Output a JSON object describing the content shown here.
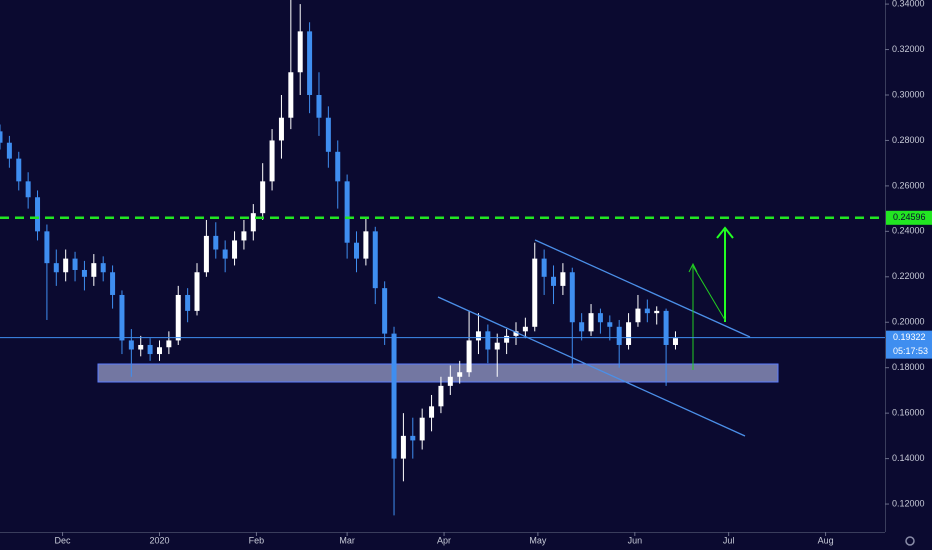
{
  "chart_data": {
    "type": "candlestick",
    "x": [
      -20,
      -17,
      -14,
      -11,
      -8,
      -5,
      -2,
      1,
      4,
      7,
      10,
      13,
      16,
      19,
      22,
      25,
      28,
      31,
      34,
      37,
      40,
      43,
      46,
      49,
      52,
      55,
      58,
      61,
      64,
      67,
      70,
      73,
      76,
      79,
      82,
      85,
      88,
      91,
      94,
      97,
      100,
      103,
      106,
      109,
      112,
      115,
      118,
      121,
      124,
      127,
      130,
      133,
      136,
      139,
      142,
      145,
      148,
      151,
      154,
      157,
      160,
      163,
      166,
      169,
      172,
      175,
      178,
      181,
      184,
      187,
      190,
      193,
      196
    ],
    "open": [
      0.284,
      0.279,
      0.272,
      0.262,
      0.255,
      0.24,
      0.226,
      0.222,
      0.228,
      0.223,
      0.22,
      0.226,
      0.222,
      0.212,
      0.192,
      0.188,
      0.19,
      0.186,
      0.189,
      0.192,
      0.212,
      0.205,
      0.222,
      0.238,
      0.232,
      0.228,
      0.236,
      0.24,
      0.248,
      0.262,
      0.28,
      0.29,
      0.31,
      0.328,
      0.3,
      0.29,
      0.275,
      0.262,
      0.235,
      0.228,
      0.24,
      0.215,
      0.195,
      0.14,
      0.15,
      0.148,
      0.158,
      0.163,
      0.172,
      0.176,
      0.178,
      0.192,
      0.196,
      0.188,
      0.191,
      0.194,
      0.196,
      0.198,
      0.228,
      0.22,
      0.216,
      0.222,
      0.2,
      0.196,
      0.204,
      0.2,
      0.198,
      0.19,
      0.2,
      0.206,
      0.204,
      0.205,
      0.19
    ],
    "high": [
      0.287,
      0.282,
      0.275,
      0.266,
      0.258,
      0.243,
      0.232,
      0.232,
      0.231,
      0.227,
      0.23,
      0.229,
      0.225,
      0.214,
      0.197,
      0.194,
      0.193,
      0.192,
      0.196,
      0.216,
      0.215,
      0.226,
      0.245,
      0.244,
      0.236,
      0.24,
      0.245,
      0.252,
      0.27,
      0.285,
      0.3,
      0.342,
      0.34,
      0.332,
      0.31,
      0.295,
      0.28,
      0.265,
      0.24,
      0.246,
      0.242,
      0.218,
      0.198,
      0.16,
      0.158,
      0.162,
      0.168,
      0.176,
      0.181,
      0.183,
      0.205,
      0.204,
      0.199,
      0.195,
      0.197,
      0.2,
      0.202,
      0.235,
      0.232,
      0.225,
      0.226,
      0.224,
      0.204,
      0.208,
      0.206,
      0.203,
      0.201,
      0.204,
      0.212,
      0.21,
      0.207,
      0.206,
      0.196
    ],
    "low": [
      0.276,
      0.268,
      0.258,
      0.25,
      0.236,
      0.201,
      0.216,
      0.218,
      0.218,
      0.214,
      0.216,
      0.218,
      0.206,
      0.186,
      0.176,
      0.185,
      0.183,
      0.183,
      0.186,
      0.19,
      0.2,
      0.203,
      0.22,
      0.228,
      0.222,
      0.225,
      0.232,
      0.236,
      0.245,
      0.258,
      0.272,
      0.285,
      0.3,
      0.292,
      0.282,
      0.268,
      0.25,
      0.228,
      0.222,
      0.225,
      0.208,
      0.19,
      0.115,
      0.13,
      0.14,
      0.144,
      0.152,
      0.16,
      0.168,
      0.173,
      0.176,
      0.186,
      0.182,
      0.176,
      0.186,
      0.19,
      0.193,
      0.196,
      0.212,
      0.208,
      0.212,
      0.18,
      0.192,
      0.194,
      0.195,
      0.192,
      0.18,
      0.188,
      0.198,
      0.2,
      0.199,
      0.172,
      0.188
    ],
    "close": [
      0.279,
      0.272,
      0.262,
      0.255,
      0.24,
      0.226,
      0.222,
      0.228,
      0.223,
      0.22,
      0.226,
      0.222,
      0.212,
      0.192,
      0.188,
      0.19,
      0.186,
      0.189,
      0.192,
      0.212,
      0.205,
      0.222,
      0.238,
      0.232,
      0.228,
      0.236,
      0.24,
      0.248,
      0.262,
      0.28,
      0.29,
      0.31,
      0.328,
      0.3,
      0.29,
      0.275,
      0.262,
      0.235,
      0.228,
      0.24,
      0.215,
      0.195,
      0.14,
      0.15,
      0.148,
      0.158,
      0.163,
      0.172,
      0.176,
      0.178,
      0.192,
      0.196,
      0.188,
      0.191,
      0.194,
      0.196,
      0.198,
      0.228,
      0.22,
      0.216,
      0.222,
      0.2,
      0.196,
      0.204,
      0.2,
      0.198,
      0.19,
      0.2,
      0.206,
      0.204,
      0.205,
      0.19,
      0.193
    ],
    "up_color": "#ffffff",
    "down_color": "#3f8ef0",
    "xlim": [
      -20,
      263
    ],
    "xticks": [
      {
        "value": 0,
        "label": "Dec"
      },
      {
        "value": 31,
        "label": "2020"
      },
      {
        "value": 62,
        "label": "Feb"
      },
      {
        "value": 91,
        "label": "Mar"
      },
      {
        "value": 122,
        "label": "Apr"
      },
      {
        "value": 152,
        "label": "May"
      },
      {
        "value": 183,
        "label": "Jun"
      },
      {
        "value": 213,
        "label": "Jul"
      },
      {
        "value": 244,
        "label": "Aug"
      }
    ],
    "ylim": [
      0.1077,
      0.3418
    ],
    "yticks": [
      {
        "value": 0.12,
        "label": "0.12000"
      },
      {
        "value": 0.14,
        "label": "0.14000"
      },
      {
        "value": 0.16,
        "label": "0.16000"
      },
      {
        "value": 0.18,
        "label": "0.18000"
      },
      {
        "value": 0.2,
        "label": "0.20000"
      },
      {
        "value": 0.22,
        "label": "0.22000"
      },
      {
        "value": 0.24,
        "label": "0.24000"
      },
      {
        "value": 0.26,
        "label": "0.26000"
      },
      {
        "value": 0.28,
        "label": "0.28000"
      },
      {
        "value": 0.3,
        "label": "0.30000"
      },
      {
        "value": 0.32,
        "label": "0.32000"
      },
      {
        "value": 0.34,
        "label": "0.34000"
      }
    ],
    "last_price": 0.19322,
    "countdown": "05:17:53",
    "level": 0.24596
  }
}
